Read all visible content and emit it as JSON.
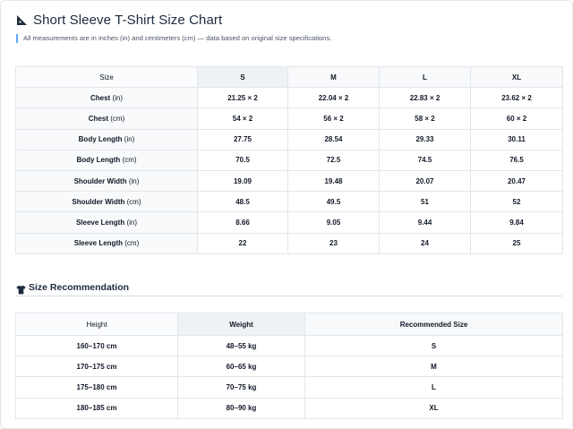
{
  "header": {
    "title": "Short Sleeve T-Shirt Size Chart",
    "subtitle": "All measurements are in inches (in) and centimeters (cm) — data based on original size specifications."
  },
  "size_chart": {
    "corner_label": "Size",
    "sizes": [
      "S",
      "M",
      "L",
      "XL"
    ],
    "rows": [
      {
        "label": "Chest",
        "unit": "(in)",
        "values": [
          "21.25 × 2",
          "22.04 × 2",
          "22.83 × 2",
          "23.62 × 2"
        ]
      },
      {
        "label": "Chest",
        "unit": "(cm)",
        "values": [
          "54 × 2",
          "56 × 2",
          "58 × 2",
          "60 × 2"
        ]
      },
      {
        "label": "Body Length",
        "unit": "(in)",
        "values": [
          "27.75",
          "28.54",
          "29.33",
          "30.11"
        ]
      },
      {
        "label": "Body Length",
        "unit": "(cm)",
        "values": [
          "70.5",
          "72.5",
          "74.5",
          "76.5"
        ]
      },
      {
        "label": "Shoulder Width",
        "unit": "(in)",
        "values": [
          "19.09",
          "19.48",
          "20.07",
          "20.47"
        ]
      },
      {
        "label": "Shoulder Width",
        "unit": "(cm)",
        "values": [
          "48.5",
          "49.5",
          "51",
          "52"
        ]
      },
      {
        "label": "Sleeve Length",
        "unit": "(in)",
        "values": [
          "8.66",
          "9.05",
          "9.44",
          "9.84"
        ]
      },
      {
        "label": "Sleeve Length",
        "unit": "(cm)",
        "values": [
          "22",
          "23",
          "24",
          "25"
        ]
      }
    ]
  },
  "recommendation": {
    "title": "Size Recommendation",
    "headers": [
      "Height",
      "Weight",
      "Recommended Size"
    ],
    "rows": [
      [
        "160–170 cm",
        "48–55 kg",
        "S"
      ],
      [
        "170–175 cm",
        "60–65 kg",
        "M"
      ],
      [
        "175–180 cm",
        "70–75 kg",
        "L"
      ],
      [
        "180–185 cm",
        "80–90 kg",
        "XL"
      ]
    ]
  },
  "icons": {
    "title_icon": "ruler-triangle-icon",
    "section_icon": "t-shirt-icon"
  },
  "colors": {
    "accent": "#60a5fa",
    "title_text": "#1e2a3b",
    "header_bg": "#f7f9fb"
  }
}
